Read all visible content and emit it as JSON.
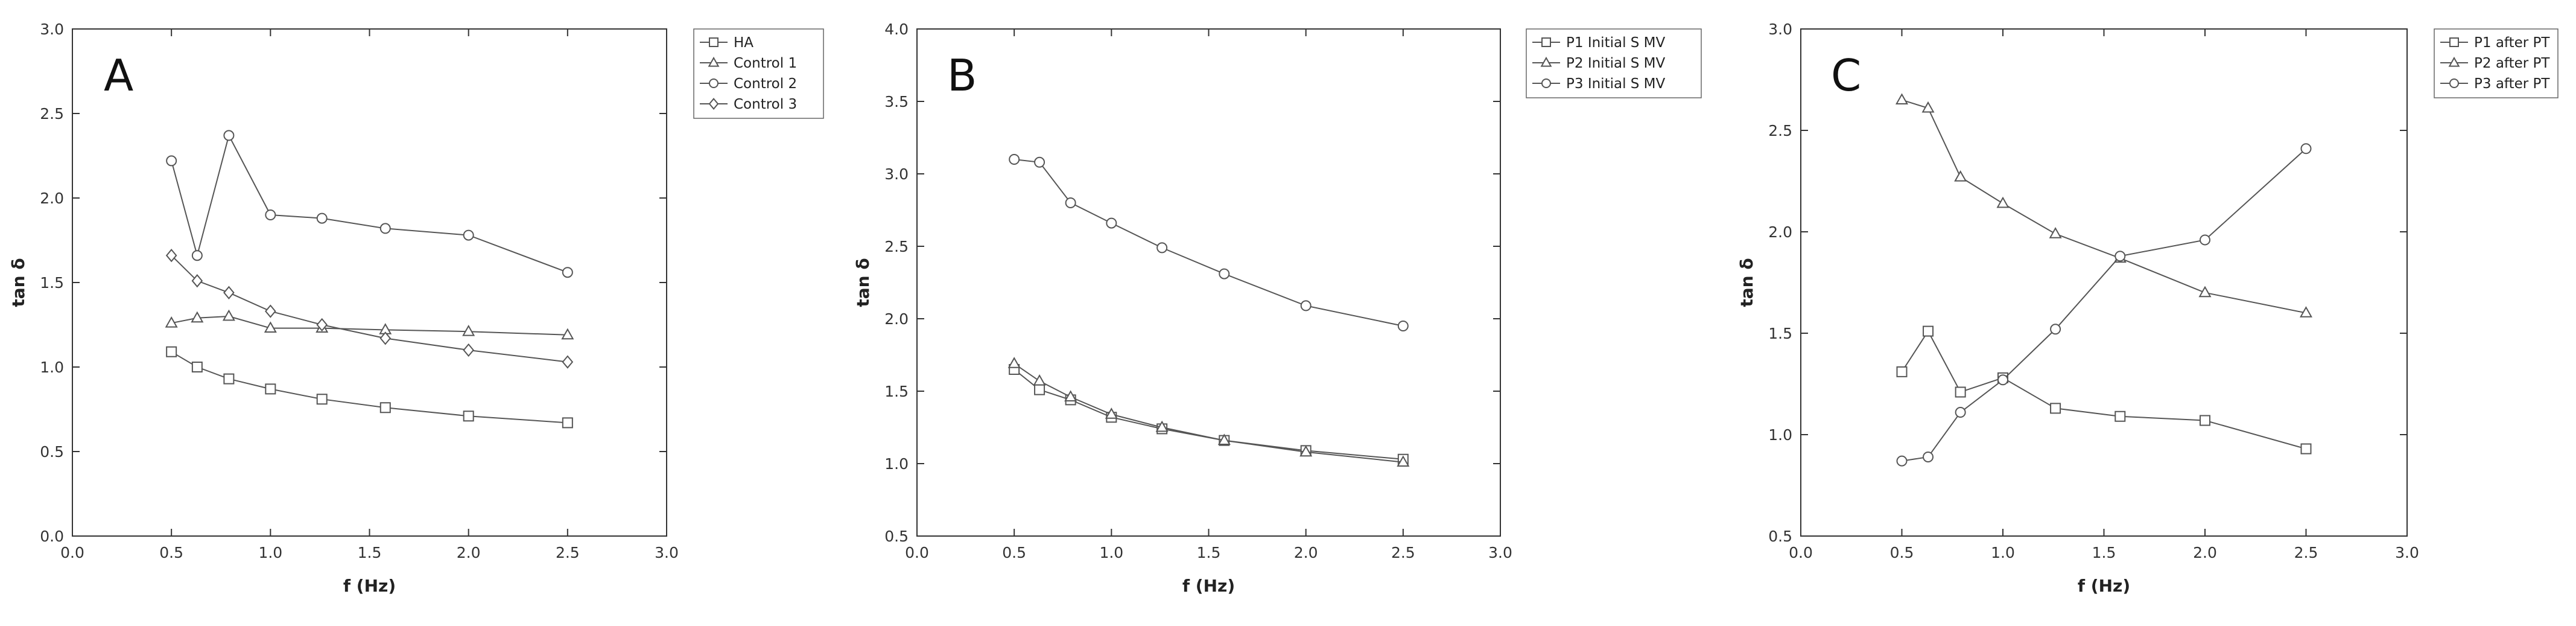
{
  "chart_data": [
    {
      "type": "line",
      "panel_label": "A",
      "xlabel": "f (Hz)",
      "ylabel": "tan δ",
      "xlim": [
        0.0,
        3.0
      ],
      "ylim": [
        0.0,
        3.0
      ],
      "xticks": [
        "0.0",
        "0.5",
        "1.0",
        "1.5",
        "2.0",
        "2.5",
        "3.0"
      ],
      "yticks": [
        "0.0",
        "0.5",
        "1.0",
        "1.5",
        "2.0",
        "2.5",
        "3.0"
      ],
      "legend_position": "top-right outside",
      "x": [
        0.5,
        0.63,
        0.79,
        1.0,
        1.26,
        1.58,
        2.0,
        2.5
      ],
      "series": [
        {
          "name": "HA",
          "marker": "square",
          "values": [
            1.09,
            1.0,
            0.93,
            0.87,
            0.81,
            0.76,
            0.71,
            0.67
          ]
        },
        {
          "name": "Control 1",
          "marker": "triangle",
          "values": [
            1.26,
            1.29,
            1.3,
            1.23,
            1.23,
            1.22,
            1.21,
            1.19
          ]
        },
        {
          "name": "Control 2",
          "marker": "circle",
          "values": [
            2.22,
            1.66,
            2.37,
            1.9,
            1.88,
            1.82,
            1.78,
            1.56
          ]
        },
        {
          "name": "Control 3",
          "marker": "diamond",
          "values": [
            1.66,
            1.51,
            1.44,
            1.33,
            1.25,
            1.17,
            1.1,
            1.03
          ]
        }
      ]
    },
    {
      "type": "line",
      "panel_label": "B",
      "xlabel": "f (Hz)",
      "ylabel": "tan δ",
      "xlim": [
        0.0,
        3.0
      ],
      "ylim": [
        0.5,
        4.0
      ],
      "xticks": [
        "0.0",
        "0.5",
        "1.0",
        "1.5",
        "2.0",
        "2.5",
        "3.0"
      ],
      "yticks": [
        "0.5",
        "1.0",
        "1.5",
        "2.0",
        "2.5",
        "3.0",
        "3.5",
        "4.0"
      ],
      "legend_position": "top-right outside",
      "x": [
        0.5,
        0.63,
        0.79,
        1.0,
        1.26,
        1.58,
        2.0,
        2.5
      ],
      "series": [
        {
          "name": "P1 Initial S MV",
          "marker": "square",
          "values": [
            1.65,
            1.51,
            1.44,
            1.32,
            1.24,
            1.16,
            1.09,
            1.03
          ]
        },
        {
          "name": "P2 Initial S MV",
          "marker": "triangle",
          "values": [
            1.69,
            1.57,
            1.46,
            1.34,
            1.25,
            1.16,
            1.08,
            1.01
          ]
        },
        {
          "name": "P3 Initial S MV",
          "marker": "circle",
          "values": [
            3.1,
            3.08,
            2.8,
            2.66,
            2.49,
            2.31,
            2.09,
            1.95
          ]
        }
      ]
    },
    {
      "type": "line",
      "panel_label": "C",
      "xlabel": "f (Hz)",
      "ylabel": "tan δ",
      "xlim": [
        0.0,
        3.0
      ],
      "ylim": [
        0.5,
        3.0
      ],
      "xticks": [
        "0.0",
        "0.5",
        "1.0",
        "1.5",
        "2.0",
        "2.5",
        "3.0"
      ],
      "yticks": [
        "0.5",
        "1.0",
        "1.5",
        "2.0",
        "2.5",
        "3.0"
      ],
      "legend_position": "top-right outside",
      "x": [
        0.5,
        0.63,
        0.79,
        1.0,
        1.26,
        1.58,
        2.0,
        2.5
      ],
      "series": [
        {
          "name": "P1 after PT",
          "marker": "square",
          "values": [
            1.31,
            1.51,
            1.21,
            1.28,
            1.13,
            1.09,
            1.07,
            0.93
          ]
        },
        {
          "name": "P2 after PT",
          "marker": "triangle",
          "values": [
            2.65,
            2.61,
            2.27,
            2.14,
            1.99,
            1.87,
            1.7,
            1.6
          ]
        },
        {
          "name": "P3 after PT",
          "marker": "circle",
          "values": [
            0.87,
            0.89,
            1.11,
            1.27,
            1.52,
            1.88,
            1.96,
            2.41
          ]
        }
      ]
    }
  ],
  "colors": {
    "line": "#555555",
    "axis": "#333333",
    "legend_border": "#666666"
  }
}
